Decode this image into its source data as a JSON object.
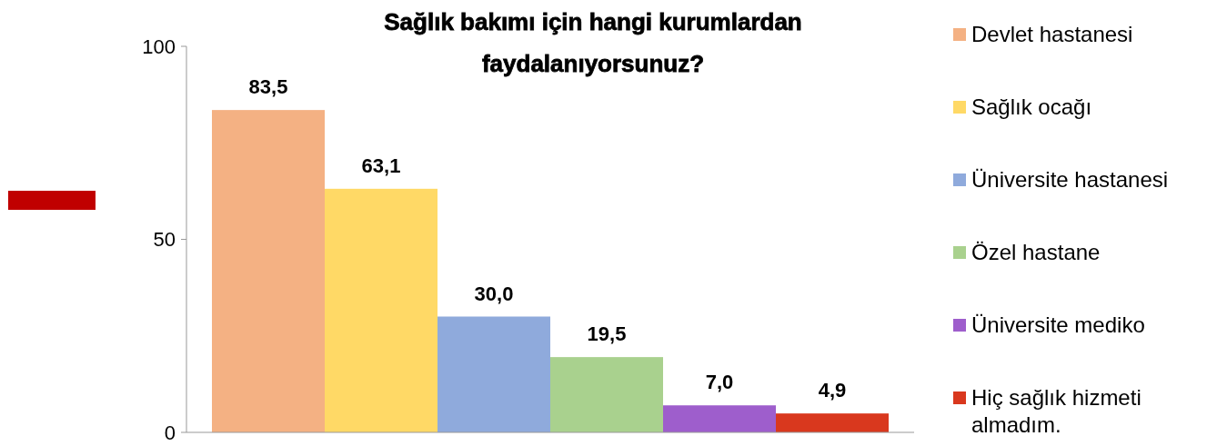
{
  "chart_data": {
    "type": "bar",
    "title": "Sağlık bakımı için hangi kurumlardan faydalanıyorsunuz?",
    "categories": [
      null
    ],
    "series": [
      {
        "name": "Devlet hastanesi",
        "color": "#f4b183",
        "values": [
          83.5
        ],
        "value_labels": [
          "83,5"
        ]
      },
      {
        "name": "Sağlık ocağı",
        "color": "#ffd966",
        "values": [
          63.1
        ],
        "value_labels": [
          "63,1"
        ]
      },
      {
        "name": "Üniversite hastanesi",
        "color": "#8faadc",
        "values": [
          30.0
        ],
        "value_labels": [
          "30,0"
        ]
      },
      {
        "name": "Özel hastane",
        "color": "#a9d18e",
        "values": [
          19.5
        ],
        "value_labels": [
          "19,5"
        ]
      },
      {
        "name": "Üniversite mediko",
        "color": "#9e5ecc",
        "values": [
          7.0
        ],
        "value_labels": [
          "7,0"
        ]
      },
      {
        "name": "Hiç sağlık hizmeti almadım.",
        "color": "#d9381e",
        "values": [
          4.9
        ],
        "value_labels": [
          "4,9"
        ]
      }
    ],
    "ylim": [
      0,
      100
    ],
    "yticks": [
      0,
      50,
      100
    ],
    "legend": "right"
  }
}
